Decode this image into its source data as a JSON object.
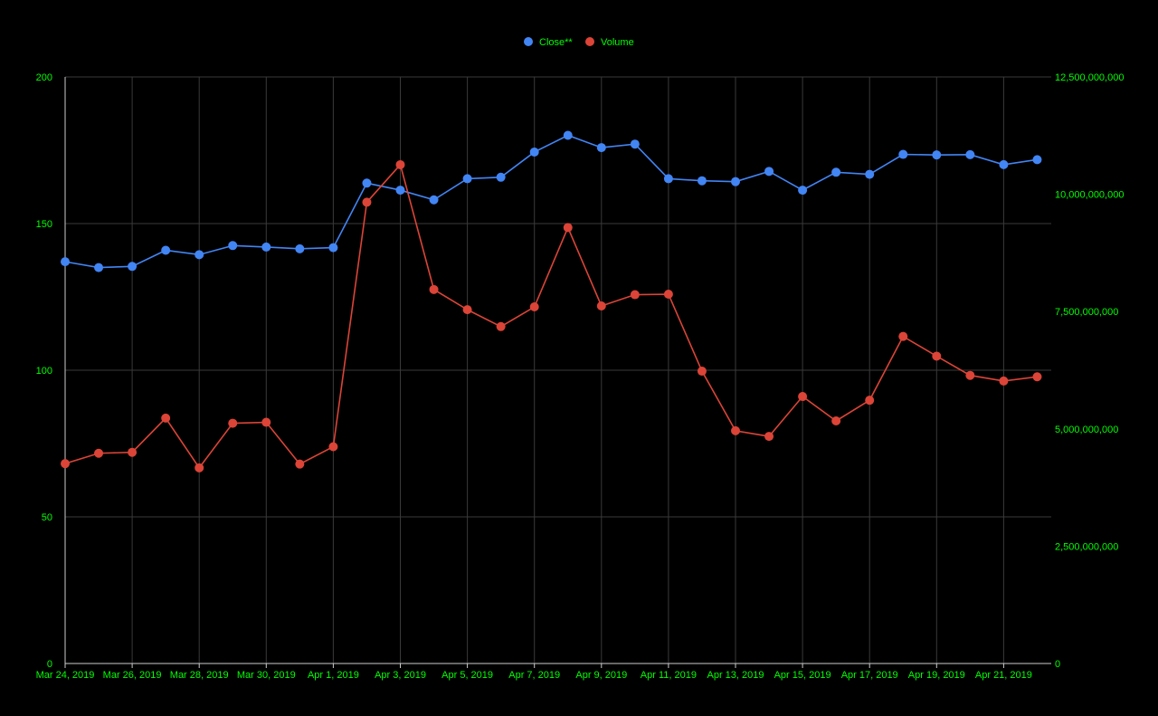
{
  "chart_data": {
    "type": "line",
    "title": "",
    "x": [
      "Mar 24, 2019",
      "Mar 25, 2019",
      "Mar 26, 2019",
      "Mar 27, 2019",
      "Mar 28, 2019",
      "Mar 29, 2019",
      "Mar 30, 2019",
      "Mar 31, 2019",
      "Apr 1, 2019",
      "Apr 2, 2019",
      "Apr 3, 2019",
      "Apr 4, 2019",
      "Apr 5, 2019",
      "Apr 6, 2019",
      "Apr 7, 2019",
      "Apr 8, 2019",
      "Apr 9, 2019",
      "Apr 10, 2019",
      "Apr 11, 2019",
      "Apr 12, 2019",
      "Apr 13, 2019",
      "Apr 14, 2019",
      "Apr 15, 2019",
      "Apr 16, 2019",
      "Apr 17, 2019",
      "Apr 18, 2019",
      "Apr 19, 2019",
      "Apr 20, 2019",
      "Apr 21, 2019",
      "Apr 22, 2019"
    ],
    "x_tick_labels": [
      "Mar 24, 2019",
      "Mar 26, 2019",
      "Mar 28, 2019",
      "Mar 30, 2019",
      "Apr 1, 2019",
      "Apr 3, 2019",
      "Apr 5, 2019",
      "Apr 7, 2019",
      "Apr 9, 2019",
      "Apr 11, 2019",
      "Apr 13, 2019",
      "Apr 15, 2019",
      "Apr 17, 2019",
      "Apr 19, 2019",
      "Apr 21, 2019"
    ],
    "series": [
      {
        "name": "Close**",
        "axis": "left",
        "color": "#4285F4",
        "values": [
          137.0,
          135.0,
          135.4,
          140.9,
          139.4,
          142.5,
          142.0,
          141.4,
          141.8,
          163.8,
          161.4,
          158.1,
          165.3,
          165.8,
          174.4,
          180.1,
          175.9,
          177.1,
          165.3,
          164.6,
          164.3,
          167.8,
          161.4,
          167.5,
          166.8,
          173.6,
          173.4,
          173.5,
          170.1,
          171.8
        ]
      },
      {
        "name": "Volume",
        "axis": "right",
        "color": "#DB4437",
        "values": [
          4260000000,
          4480000000,
          4500000000,
          5230000000,
          4170000000,
          5120000000,
          5140000000,
          4250000000,
          4620000000,
          9830000000,
          10630000000,
          7970000000,
          7540000000,
          7180000000,
          7600000000,
          9290000000,
          7620000000,
          7860000000,
          7870000000,
          6230000000,
          4960000000,
          4840000000,
          5690000000,
          5170000000,
          5610000000,
          6970000000,
          6550000000,
          6140000000,
          6020000000,
          6110000000
        ]
      }
    ],
    "left_axis": {
      "ylim": [
        0,
        200
      ],
      "ticks": [
        0,
        50,
        100,
        150,
        200
      ],
      "tick_labels": [
        "0",
        "50",
        "100",
        "150",
        "200"
      ]
    },
    "right_axis": {
      "ylim": [
        0,
        12500000000
      ],
      "ticks": [
        0,
        2500000000,
        5000000000,
        7500000000,
        10000000000,
        12500000000
      ],
      "tick_labels": [
        "0",
        "2,500,000,000",
        "5,000,000,000",
        "7,500,000,000",
        "10,000,000,000",
        "12,500,000,000"
      ]
    },
    "grid": true,
    "legend_position": "top-center",
    "colors": {
      "background": "#000000",
      "grid": "#3a3a3a",
      "axis": "#cccccc",
      "text": "#00ff00"
    }
  }
}
